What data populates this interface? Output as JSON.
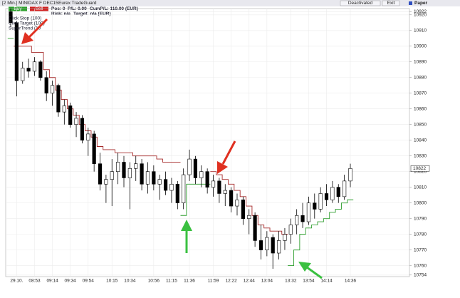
{
  "window": {
    "title": "[2 Min.] MINIDAX F DEC15",
    "app": "Eurex TradeGuard",
    "deactivated": "Deactivated",
    "exit": "Exit",
    "mode": "Paper"
  },
  "order_panel": {
    "buy": "Buy",
    "sell": "Sell",
    "position": "Pos: 0",
    "pl": "P/L: 0.00",
    "cum_pl": "CumP/L: 110.00 (EUR)",
    "risk": "Risk: n/a",
    "target": "Target: n/a (EUR)"
  },
  "chart_data": {
    "type": "candlestick",
    "legend": [
      "Click Stop (100)",
      "Click Target (100)",
      "SuperTrend (10"
    ],
    "categories": [
      null,
      "29.10.",
      null,
      null,
      "08:53",
      null,
      null,
      "09:14",
      null,
      null,
      "09:34",
      null,
      null,
      "09:54",
      null,
      null,
      null,
      "10:15",
      null,
      null,
      "10:34",
      null,
      null,
      null,
      "10:56",
      null,
      null,
      "11:15",
      null,
      null,
      "11:36",
      null,
      null,
      null,
      "11:59",
      null,
      null,
      "12:22",
      null,
      null,
      "12:44",
      null,
      null,
      "13:04",
      null,
      null,
      null,
      "13:32",
      null,
      null,
      "13:54",
      null,
      null,
      "14:14",
      null,
      null,
      null,
      "14:36"
    ],
    "open": [
      10922,
      10915,
      10878,
      10886,
      10884,
      10890,
      10880,
      10870,
      10875,
      10858,
      10862,
      10850,
      10854,
      10840,
      10844,
      10825,
      10812,
      10815,
      10820,
      10826,
      10816,
      10822,
      10825,
      10812,
      10820,
      10812,
      10815,
      10808,
      10812,
      10800,
      10818,
      10828,
      10816,
      10820,
      10810,
      10814,
      10806,
      10808,
      10798,
      10802,
      10790,
      10792,
      10776,
      10770,
      10778,
      10768,
      10776,
      10780,
      10786,
      10792,
      10788,
      10800,
      10796,
      10806,
      10802,
      10810,
      10804,
      10814
    ],
    "high": [
      10924,
      10916,
      10890,
      10892,
      10893,
      10891,
      10884,
      10878,
      10876,
      10866,
      10864,
      10858,
      10856,
      10848,
      10846,
      10832,
      10818,
      10828,
      10832,
      10830,
      10826,
      10830,
      10828,
      10826,
      10824,
      10818,
      10820,
      10816,
      10814,
      10822,
      10834,
      10830,
      10824,
      10822,
      10818,
      10816,
      10812,
      10810,
      10806,
      10804,
      10796,
      10794,
      10786,
      10782,
      10780,
      10782,
      10784,
      10790,
      10796,
      10800,
      10804,
      10806,
      10810,
      10812,
      10814,
      10812,
      10818,
      10825
    ],
    "low": [
      10912,
      10868,
      10876,
      10880,
      10881,
      10878,
      10865,
      10862,
      10855,
      10850,
      10848,
      10842,
      10838,
      10830,
      10820,
      10808,
      10800,
      10798,
      10812,
      10810,
      10796,
      10814,
      10808,
      10806,
      10808,
      10802,
      10805,
      10800,
      10796,
      10796,
      10814,
      10812,
      10810,
      10806,
      10804,
      10800,
      10798,
      10794,
      10792,
      10786,
      10780,
      10772,
      10764,
      10766,
      10758,
      10764,
      10770,
      10774,
      10780,
      10784,
      10786,
      10790,
      10794,
      10798,
      10800,
      10800,
      10802,
      10810
    ],
    "close": [
      10915,
      10878,
      10886,
      10884,
      10890,
      10880,
      10870,
      10875,
      10858,
      10862,
      10850,
      10854,
      10840,
      10844,
      10825,
      10812,
      10815,
      10820,
      10826,
      10816,
      10822,
      10825,
      10812,
      10820,
      10812,
      10815,
      10808,
      10812,
      10800,
      10818,
      10828,
      10816,
      10820,
      10810,
      10814,
      10806,
      10808,
      10798,
      10802,
      10790,
      10792,
      10776,
      10770,
      10778,
      10768,
      10776,
      10780,
      10786,
      10792,
      10788,
      10800,
      10796,
      10806,
      10802,
      10810,
      10804,
      10814,
      10822
    ],
    "overlays": [
      {
        "color": "#a52a2a",
        "values": [
          null,
          10900,
          10900,
          10900,
          10896,
          10896,
          10885,
          10880,
          10872,
          10866,
          10860,
          10856,
          10850,
          10846,
          10842,
          10836,
          10834,
          10834,
          10832,
          10832,
          10832,
          10830,
          10830,
          10830,
          10830,
          10828,
          10826,
          10826,
          10826,
          null,
          null,
          null,
          null,
          null,
          10820,
          10818,
          10815,
          10812,
          10808,
          10804,
          10798,
          10792,
          10786,
          10784,
          10782,
          10782,
          10780,
          null,
          null,
          null,
          null,
          null,
          null,
          null,
          null,
          null,
          null,
          null
        ]
      },
      {
        "color": "#2e9e2e",
        "values": [
          10905,
          null,
          null,
          null,
          null,
          null,
          null,
          null,
          null,
          null,
          null,
          null,
          null,
          null,
          null,
          null,
          null,
          null,
          null,
          null,
          null,
          null,
          null,
          null,
          null,
          null,
          null,
          null,
          null,
          10792,
          10812,
          10812,
          10812,
          10812,
          null,
          null,
          null,
          null,
          null,
          null,
          null,
          null,
          null,
          null,
          null,
          null,
          null,
          10760,
          10770,
          10780,
          10784,
          10786,
          10788,
          10790,
          10794,
          10796,
          10800,
          10802
        ]
      }
    ],
    "last_price": 10822,
    "ylim": [
      10753,
      10924
    ],
    "yticks": [
      10754,
      10760,
      10770,
      10780,
      10790,
      10800,
      10810,
      10820,
      10830,
      10840,
      10850,
      10860,
      10870,
      10880,
      10890,
      10900,
      10910,
      10920,
      10922
    ],
    "grid": true
  }
}
